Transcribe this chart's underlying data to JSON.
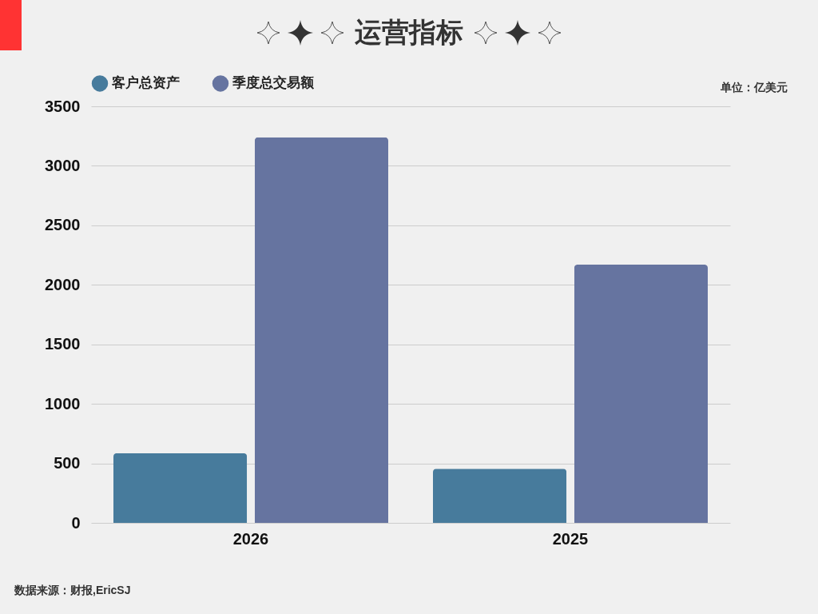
{
  "chart_data": {
    "type": "bar",
    "title": "运营指标",
    "categories": [
      "2026",
      "2025"
    ],
    "series": [
      {
        "name": "客户总资产",
        "color": "#477b9c",
        "values": [
          585,
          455
        ]
      },
      {
        "name": "季度总交易额",
        "color": "#6674a0",
        "values": [
          3240,
          2170
        ]
      }
    ],
    "ylim": [
      0,
      3500
    ],
    "yticks": [
      0,
      500,
      1000,
      1500,
      2000,
      2500,
      3000,
      3500
    ],
    "grid": "y",
    "legend": "top",
    "annotations": [
      "单位：亿美元",
      "数据来源：财报,EricSJ"
    ]
  }
}
